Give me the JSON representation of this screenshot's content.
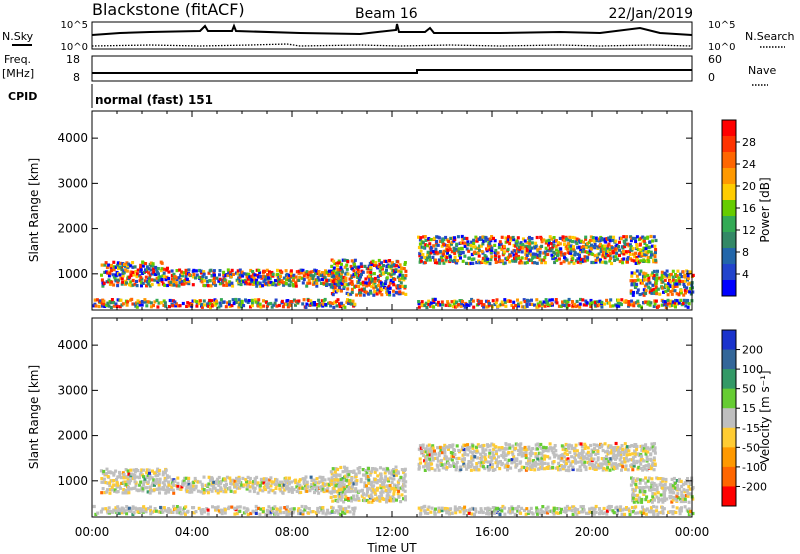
{
  "header": {
    "station": "Blackstone (fitACF)",
    "beam": "Beam 16",
    "date": "22/Jan/2019"
  },
  "top_panels": {
    "nsky_label": "N.Sky",
    "nsearch_label": "N.Search",
    "nsky_ticks": [
      "10^5",
      "10^0"
    ],
    "nsearch_ticks": [
      "10^5",
      "10^0"
    ],
    "freq_label_1": "Freq.",
    "freq_label_2": "[MHz]",
    "freq_ticks": [
      "18",
      "8"
    ],
    "nave_label": "Nave",
    "nave_ticks": [
      "60",
      "0"
    ],
    "cpid_label": "CPID",
    "cpid_text": "normal (fast) 151"
  },
  "chart_data": [
    {
      "type": "heatmap",
      "name": "power",
      "ylabel": "Slant Range [km]",
      "xlabel": "",
      "colorbar_label": "Power [dB]",
      "colorbar_ticks": [
        "28",
        "24",
        "20",
        "16",
        "12",
        "8",
        "4"
      ],
      "colorbar_colors": [
        "#ff0000",
        "#ff3300",
        "#ff6600",
        "#ff9900",
        "#ffcc00",
        "#66cc00",
        "#33aa55",
        "#338866",
        "#2266aa",
        "#2244cc",
        "#0000ff"
      ],
      "x_ticks": [
        "00:00",
        "04:00",
        "08:00",
        "12:00",
        "16:00",
        "20:00",
        "00:00"
      ],
      "y_ticks": [
        "4000",
        "3000",
        "2000",
        "1000"
      ],
      "y_range": [
        200,
        4600
      ],
      "x_range_hours": [
        0,
        24
      ]
    },
    {
      "type": "heatmap",
      "name": "velocity",
      "ylabel": "Slant Range [km]",
      "xlabel": "Time UT",
      "colorbar_label": "Velocity [m s⁻¹]",
      "colorbar_ticks": [
        "200",
        "100",
        "50",
        "15",
        "-15",
        "-50",
        "-100",
        "-200"
      ],
      "colorbar_colors": [
        "#1a33cc",
        "#336699",
        "#339966",
        "#66cc33",
        "#bfbfbf",
        "#ffcc33",
        "#ff9900",
        "#ff6600",
        "#ff0000"
      ],
      "x_ticks": [
        "00:00",
        "04:00",
        "08:00",
        "12:00",
        "16:00",
        "20:00",
        "00:00"
      ],
      "y_ticks": [
        "4000",
        "3000",
        "2000",
        "1000"
      ],
      "y_range": [
        200,
        4600
      ],
      "x_range_hours": [
        0,
        24
      ]
    }
  ]
}
